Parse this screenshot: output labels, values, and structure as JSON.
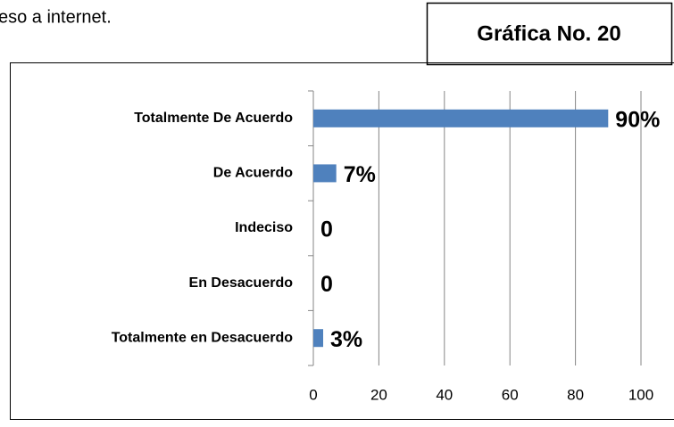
{
  "caption": "eso a internet.",
  "chart_label": "Gráfica No. 20",
  "chart_data": {
    "type": "hbar",
    "categories": [
      "Totalmente De Acuerdo",
      "De Acuerdo",
      "Indeciso",
      "En Desacuerdo",
      "Totalmente en Desacuerdo"
    ],
    "values": [
      90,
      7,
      0,
      0,
      3
    ],
    "value_labels": [
      "90%",
      "7%",
      "0",
      "0",
      "3%"
    ],
    "color": "#4f81bd",
    "xlim": [
      0,
      100
    ],
    "xticks": [
      0,
      20,
      40,
      60,
      80,
      100
    ],
    "grid": true
  }
}
